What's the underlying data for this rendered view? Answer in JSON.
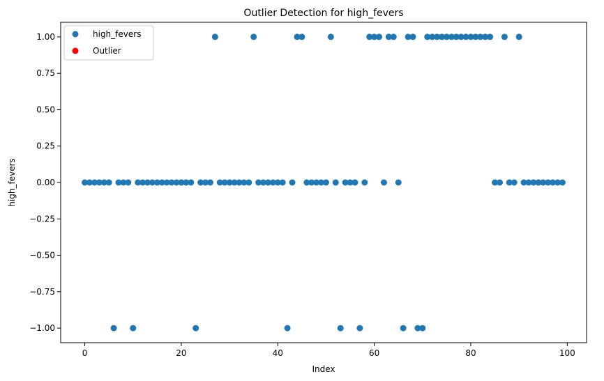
{
  "chart_data": {
    "type": "scatter",
    "title": "Outlier Detection for high_fevers",
    "xlabel": "Index",
    "ylabel": "high_fevers",
    "xlim": [
      -5,
      104
    ],
    "ylim": [
      -1.1,
      1.1
    ],
    "xticks": [
      0,
      20,
      40,
      60,
      80,
      100
    ],
    "yticks": [
      -1.0,
      -0.75,
      -0.5,
      -0.25,
      0.0,
      0.25,
      0.5,
      0.75,
      1.0
    ],
    "xtick_labels": [
      "0",
      "20",
      "40",
      "60",
      "80",
      "100"
    ],
    "ytick_labels": [
      "−1.00",
      "−0.75",
      "−0.50",
      "−0.25",
      "0.00",
      "0.25",
      "0.50",
      "0.75",
      "1.00"
    ],
    "grid": false,
    "legend_position": "top-left",
    "series": [
      {
        "name": "high_fevers",
        "color": "#1f77b4",
        "x": [
          0,
          1,
          2,
          3,
          4,
          5,
          6,
          7,
          8,
          9,
          10,
          11,
          12,
          13,
          14,
          15,
          16,
          17,
          18,
          19,
          20,
          21,
          22,
          23,
          24,
          25,
          26,
          27,
          28,
          29,
          30,
          31,
          32,
          33,
          34,
          35,
          36,
          37,
          38,
          39,
          40,
          41,
          42,
          43,
          44,
          45,
          46,
          47,
          48,
          49,
          50,
          51,
          52,
          53,
          54,
          55,
          56,
          57,
          58,
          59,
          60,
          61,
          62,
          63,
          64,
          65,
          66,
          67,
          68,
          69,
          70,
          71,
          72,
          73,
          74,
          75,
          76,
          77,
          78,
          79,
          80,
          81,
          82,
          83,
          84,
          85,
          86,
          87,
          88,
          89,
          90,
          91,
          92,
          93,
          94,
          95,
          96,
          97,
          98,
          99
        ],
        "y": [
          0,
          0,
          0,
          0,
          0,
          0,
          -1,
          0,
          0,
          0,
          -1,
          0,
          0,
          0,
          0,
          0,
          0,
          0,
          0,
          0,
          0,
          0,
          0,
          -1,
          0,
          0,
          0,
          1,
          0,
          0,
          0,
          0,
          0,
          0,
          0,
          1,
          0,
          0,
          0,
          0,
          0,
          0,
          -1,
          0,
          1,
          1,
          0,
          0,
          0,
          0,
          0,
          1,
          0,
          -1,
          0,
          0,
          0,
          -1,
          0,
          1,
          1,
          1,
          0,
          1,
          1,
          0,
          -1,
          1,
          1,
          -1,
          -1,
          1,
          1,
          1,
          1,
          1,
          1,
          1,
          1,
          1,
          1,
          1,
          1,
          1,
          1,
          0,
          0,
          1,
          0,
          0,
          1,
          0,
          0,
          0,
          0,
          0,
          0,
          0,
          0,
          0
        ]
      },
      {
        "name": "Outlier",
        "color": "#ff0000",
        "x": [],
        "y": []
      }
    ]
  }
}
